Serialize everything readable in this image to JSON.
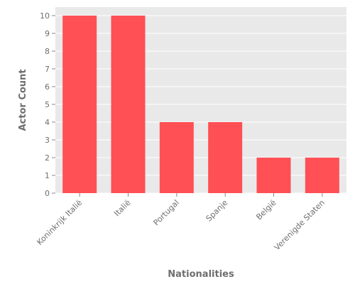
{
  "chart_data": {
    "type": "bar",
    "categories": [
      "Koninkrijk Italië",
      "Italië",
      "Portugal",
      "Spanje",
      "België",
      "Verenigde Staten"
    ],
    "values": [
      10,
      10,
      4,
      4,
      2,
      2
    ],
    "xlabel": "Nationalities",
    "ylabel": "Actor Count",
    "ylim": [
      0,
      10
    ],
    "yticks": [
      0,
      1,
      2,
      3,
      4,
      5,
      6,
      7,
      8,
      9,
      10
    ],
    "grid": true,
    "colors": {
      "bar": "#ff5055",
      "background": "#e9e9e9",
      "grid": "#ffffff"
    }
  }
}
